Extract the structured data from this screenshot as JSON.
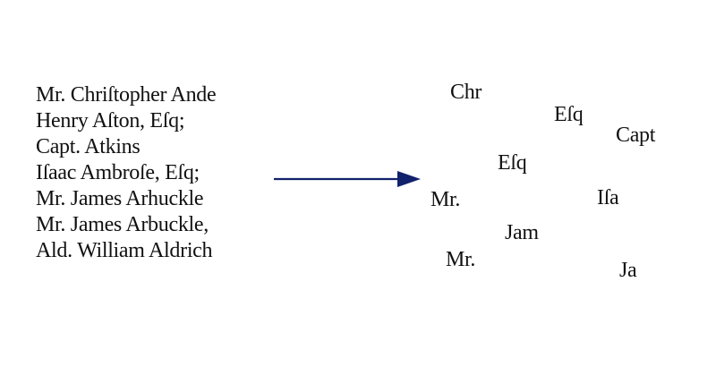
{
  "source": {
    "lines": [
      "Mr. Chriſtopher Ande",
      "Henry Aſton, Eſq;",
      "Capt. Atkins",
      "Iſaac Ambroſe, Eſq;",
      "Mr. James Arhuckle",
      "Mr. James Arbuckle,",
      "Ald. William Aldrich"
    ]
  },
  "arrow": {
    "icon": "right-arrow-icon",
    "color": "#12216b"
  },
  "fragments": {
    "chr": "Chr",
    "esq_top": "Eſq",
    "capt": "Capt",
    "esq_mid": "Eſq",
    "mr_left": "Mr.",
    "isa": "Iſa",
    "jam": "Jam",
    "mr_bottom": "Mr.",
    "ja_right": "Ja"
  }
}
